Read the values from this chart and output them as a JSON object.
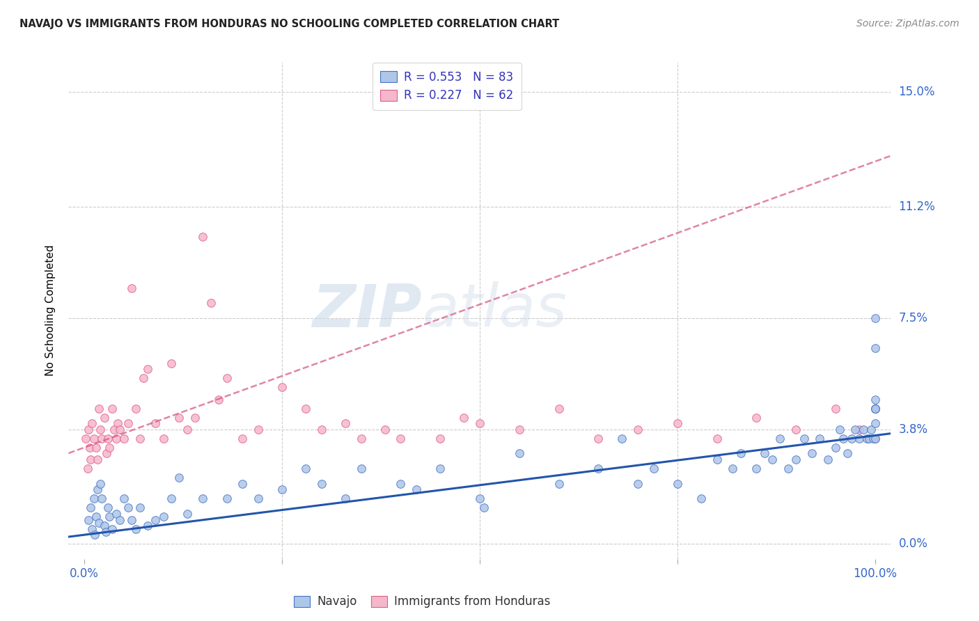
{
  "title": "NAVAJO VS IMMIGRANTS FROM HONDURAS NO SCHOOLING COMPLETED CORRELATION CHART",
  "source": "Source: ZipAtlas.com",
  "ylabel": "No Schooling Completed",
  "ytick_labels": [
    "0.0%",
    "3.8%",
    "7.5%",
    "11.2%",
    "15.0%"
  ],
  "ytick_values": [
    0.0,
    3.8,
    7.5,
    11.2,
    15.0
  ],
  "xtick_values": [
    0,
    25,
    50,
    75,
    100
  ],
  "xlim": [
    -2,
    102
  ],
  "ylim": [
    -0.5,
    16.0
  ],
  "navajo_R": 0.553,
  "navajo_N": 83,
  "honduras_R": 0.227,
  "honduras_N": 62,
  "navajo_color": "#aec6e8",
  "navajo_edge_color": "#4472c4",
  "honduras_color": "#f5b8cb",
  "honduras_edge_color": "#e05c8a",
  "trend_navajo_color": "#2255aa",
  "trend_honduras_color": "#d45080",
  "background_color": "#ffffff",
  "grid_color": "#cccccc",
  "watermark_zip": "ZIP",
  "watermark_atlas": "atlas",
  "navajo_x": [
    0.5,
    0.8,
    1.0,
    1.2,
    1.3,
    1.5,
    1.7,
    1.8,
    2.0,
    2.2,
    2.5,
    2.7,
    3.0,
    3.2,
    3.5,
    4.0,
    4.5,
    5.0,
    5.5,
    6.0,
    6.5,
    7.0,
    8.0,
    9.0,
    10.0,
    11.0,
    12.0,
    13.0,
    15.0,
    18.0,
    20.0,
    22.0,
    25.0,
    28.0,
    30.0,
    33.0,
    35.0,
    40.0,
    42.0,
    45.0,
    50.0,
    50.5,
    55.0,
    60.0,
    65.0,
    68.0,
    70.0,
    72.0,
    75.0,
    78.0,
    80.0,
    82.0,
    83.0,
    85.0,
    86.0,
    87.0,
    88.0,
    89.0,
    90.0,
    91.0,
    92.0,
    93.0,
    94.0,
    95.0,
    95.5,
    96.0,
    96.5,
    97.0,
    97.5,
    98.0,
    98.5,
    99.0,
    99.2,
    99.5,
    99.8,
    100.0,
    100.0,
    100.0,
    100.0,
    100.0,
    100.0,
    100.0,
    100.0
  ],
  "navajo_y": [
    0.8,
    1.2,
    0.5,
    1.5,
    0.3,
    0.9,
    1.8,
    0.7,
    2.0,
    1.5,
    0.6,
    0.4,
    1.2,
    0.9,
    0.5,
    1.0,
    0.8,
    1.5,
    1.2,
    0.8,
    0.5,
    1.2,
    0.6,
    0.8,
    0.9,
    1.5,
    2.2,
    1.0,
    1.5,
    1.5,
    2.0,
    1.5,
    1.8,
    2.5,
    2.0,
    1.5,
    2.5,
    2.0,
    1.8,
    2.5,
    1.5,
    1.2,
    3.0,
    2.0,
    2.5,
    3.5,
    2.0,
    2.5,
    2.0,
    1.5,
    2.8,
    2.5,
    3.0,
    2.5,
    3.0,
    2.8,
    3.5,
    2.5,
    2.8,
    3.5,
    3.0,
    3.5,
    2.8,
    3.2,
    3.8,
    3.5,
    3.0,
    3.5,
    3.8,
    3.5,
    3.8,
    3.5,
    3.5,
    3.8,
    3.5,
    4.5,
    3.5,
    4.0,
    6.5,
    4.5,
    4.8,
    4.5,
    7.5
  ],
  "honduras_x": [
    0.2,
    0.4,
    0.5,
    0.7,
    0.8,
    1.0,
    1.2,
    1.5,
    1.7,
    1.8,
    2.0,
    2.2,
    2.5,
    2.8,
    3.0,
    3.2,
    3.5,
    3.8,
    4.0,
    4.2,
    4.5,
    5.0,
    5.5,
    6.0,
    6.5,
    7.0,
    7.5,
    8.0,
    9.0,
    10.0,
    11.0,
    12.0,
    13.0,
    14.0,
    15.0,
    16.0,
    17.0,
    18.0,
    20.0,
    22.0,
    25.0,
    28.0,
    30.0,
    33.0,
    35.0,
    38.0,
    40.0,
    45.0,
    48.0,
    50.0,
    55.0,
    60.0,
    65.0,
    70.0,
    75.0,
    80.0,
    85.0,
    90.0,
    95.0,
    98.0,
    100.0,
    100.0
  ],
  "honduras_y": [
    3.5,
    2.5,
    3.8,
    3.2,
    2.8,
    4.0,
    3.5,
    3.2,
    2.8,
    4.5,
    3.8,
    3.5,
    4.2,
    3.0,
    3.5,
    3.2,
    4.5,
    3.8,
    3.5,
    4.0,
    3.8,
    3.5,
    4.0,
    8.5,
    4.5,
    3.5,
    5.5,
    5.8,
    4.0,
    3.5,
    6.0,
    4.2,
    3.8,
    4.2,
    10.2,
    8.0,
    4.8,
    5.5,
    3.5,
    3.8,
    5.2,
    4.5,
    3.8,
    4.0,
    3.5,
    3.8,
    3.5,
    3.5,
    4.2,
    4.0,
    3.8,
    4.5,
    3.5,
    3.8,
    4.0,
    3.5,
    4.2,
    3.8,
    4.5,
    3.8,
    4.5,
    3.5
  ]
}
